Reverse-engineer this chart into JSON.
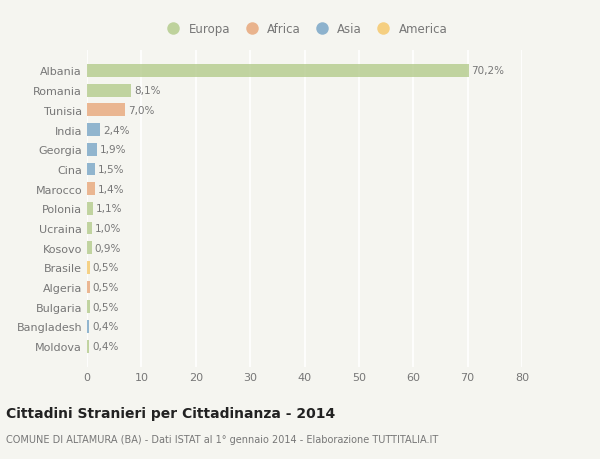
{
  "categories": [
    "Albania",
    "Romania",
    "Tunisia",
    "India",
    "Georgia",
    "Cina",
    "Marocco",
    "Polonia",
    "Ucraina",
    "Kosovo",
    "Brasile",
    "Algeria",
    "Bulgaria",
    "Bangladesh",
    "Moldova"
  ],
  "values": [
    70.2,
    8.1,
    7.0,
    2.4,
    1.9,
    1.5,
    1.4,
    1.1,
    1.0,
    0.9,
    0.5,
    0.5,
    0.5,
    0.4,
    0.4
  ],
  "labels": [
    "70,2%",
    "8,1%",
    "7,0%",
    "2,4%",
    "1,9%",
    "1,5%",
    "1,4%",
    "1,1%",
    "1,0%",
    "0,9%",
    "0,5%",
    "0,5%",
    "0,5%",
    "0,4%",
    "0,4%"
  ],
  "colors": [
    "#b5cc8e",
    "#b5cc8e",
    "#e8a87c",
    "#7ba7c7",
    "#7ba7c7",
    "#7ba7c7",
    "#e8a87c",
    "#b5cc8e",
    "#b5cc8e",
    "#b5cc8e",
    "#f5c96e",
    "#e8a87c",
    "#b5cc8e",
    "#7ba7c7",
    "#b5cc8e"
  ],
  "legend_labels": [
    "Europa",
    "Africa",
    "Asia",
    "America"
  ],
  "legend_colors": [
    "#b5cc8e",
    "#e8a87c",
    "#7ba7c7",
    "#f5c96e"
  ],
  "xlim": [
    0,
    80
  ],
  "xticks": [
    0,
    10,
    20,
    30,
    40,
    50,
    60,
    70,
    80
  ],
  "title": "Cittadini Stranieri per Cittadinanza - 2014",
  "subtitle": "COMUNE DI ALTAMURA (BA) - Dati ISTAT al 1° gennaio 2014 - Elaborazione TUTTITALIA.IT",
  "background_color": "#f5f5f0",
  "grid_color": "#ffffff",
  "bar_height": 0.65,
  "text_color": "#777777",
  "title_color": "#222222"
}
